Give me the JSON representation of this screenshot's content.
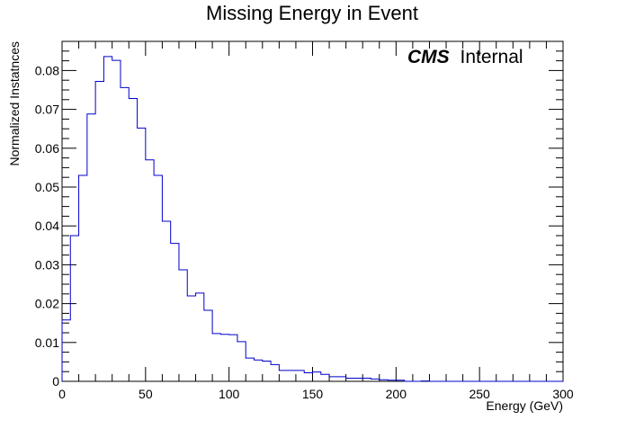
{
  "chart_data": {
    "type": "histogram",
    "title": "Missing Energy in Event",
    "xlabel": "Energy (GeV)",
    "ylabel": "Normalized Instatnces",
    "xlim": [
      0,
      300
    ],
    "ylim": [
      0,
      0.0875
    ],
    "bin_width": 5,
    "x_ticks": [
      0,
      50,
      100,
      150,
      200,
      250,
      300
    ],
    "y_ticks": [
      0,
      0.01,
      0.02,
      0.03,
      0.04,
      0.05,
      0.06,
      0.07,
      0.08
    ],
    "y_tick_labels": [
      "0",
      "0.01",
      "0.02",
      "0.03",
      "0.04",
      "0.05",
      "0.06",
      "0.07",
      "0.08"
    ],
    "line_color": "#0000cc",
    "grid": false,
    "annotation": {
      "bold": "CMS",
      "regular": "Internal"
    },
    "series": [
      {
        "values": [
          0.0158,
          0.0375,
          0.053,
          0.0688,
          0.0772,
          0.0836,
          0.0826,
          0.0756,
          0.0728,
          0.0652,
          0.057,
          0.053,
          0.0412,
          0.0355,
          0.0287,
          0.022,
          0.0227,
          0.0183,
          0.0123,
          0.0121,
          0.012,
          0.0102,
          0.006,
          0.0055,
          0.0052,
          0.0043,
          0.0028,
          0.0028,
          0.0028,
          0.0022,
          0.0024,
          0.0018,
          0.0012,
          0.0012,
          0.0008,
          0.0008,
          0.0008,
          0.0006,
          0.0004,
          0.0003,
          0.0003,
          0.0,
          0.0,
          0.0001,
          0.0,
          0.0,
          0.0,
          0.0,
          0.0,
          0.0,
          0.0,
          0.0,
          0.0,
          0.0,
          0.0,
          0.0,
          0.0,
          0.0,
          0.0,
          0.0
        ]
      }
    ]
  }
}
